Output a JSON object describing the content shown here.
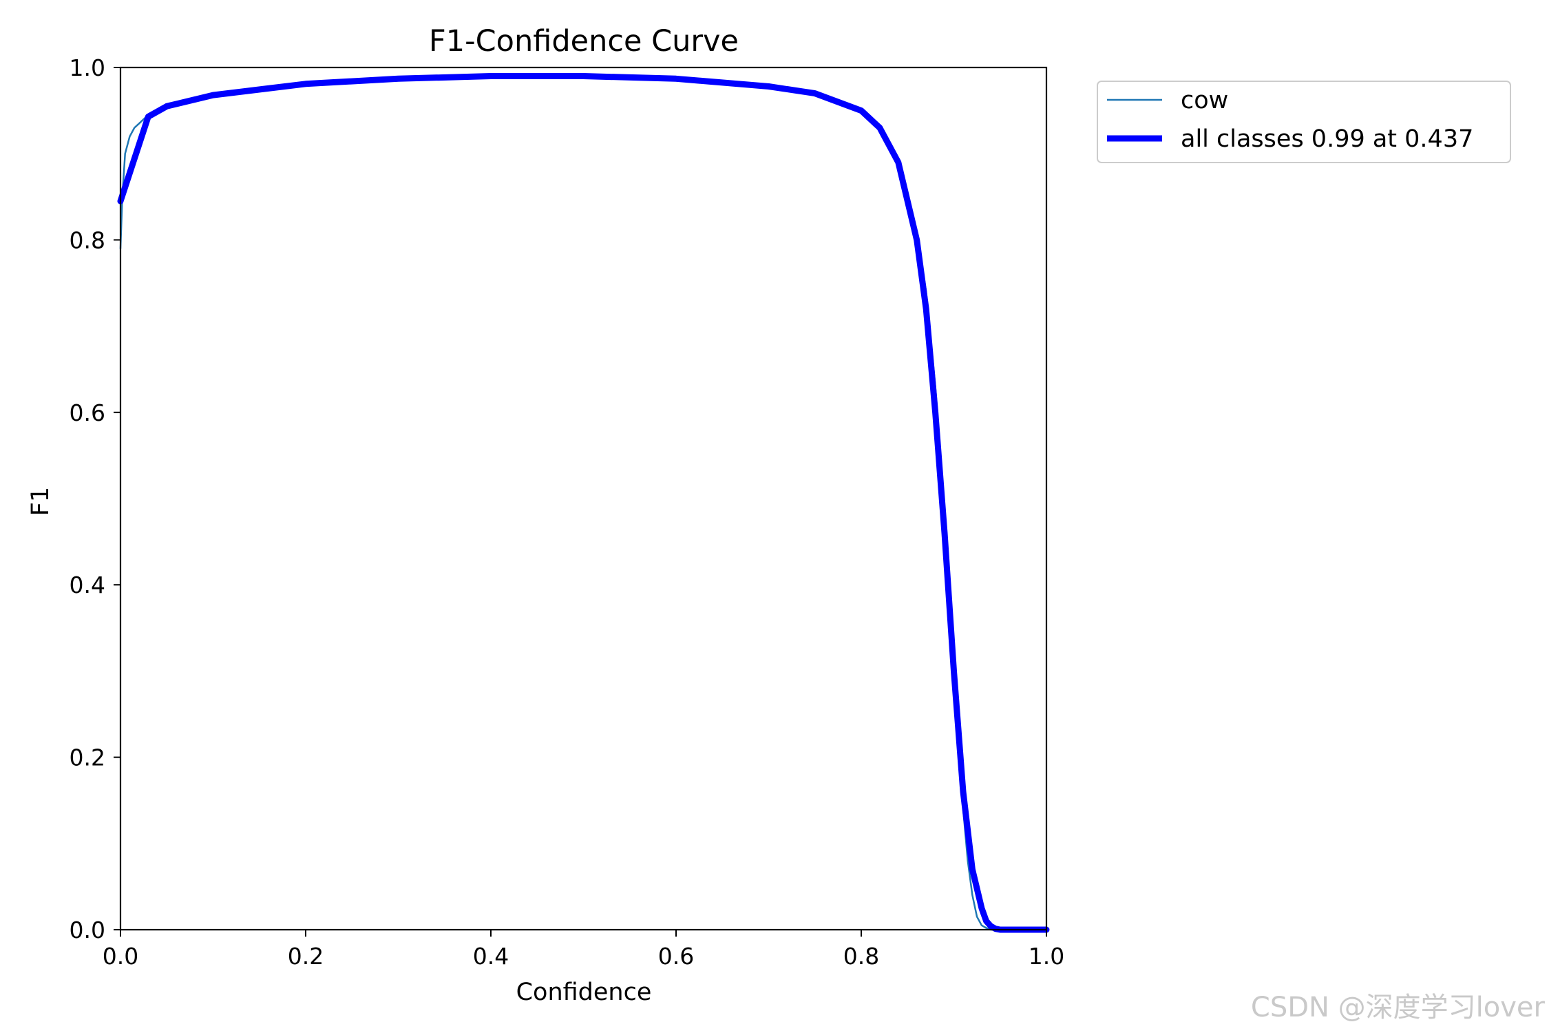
{
  "watermark": "CSDN @深度学习lover",
  "chart_data": {
    "type": "line",
    "title": "F1-Confidence Curve",
    "xlabel": "Confidence",
    "ylabel": "F1",
    "xlim": [
      0.0,
      1.0
    ],
    "ylim": [
      0.0,
      1.0
    ],
    "xticks": [
      "0.0",
      "0.2",
      "0.4",
      "0.6",
      "0.8",
      "1.0"
    ],
    "yticks": [
      "0.0",
      "0.2",
      "0.4",
      "0.6",
      "0.8",
      "1.0"
    ],
    "grid": false,
    "legend": "outside-top-right",
    "series": [
      {
        "name": "cow",
        "color": "#1f77b4",
        "x": [
          0.0,
          0.002,
          0.005,
          0.01,
          0.015,
          0.02,
          0.03,
          0.05,
          0.1,
          0.2,
          0.3,
          0.4,
          0.437,
          0.5,
          0.6,
          0.7,
          0.75,
          0.8,
          0.82,
          0.84,
          0.86,
          0.87,
          0.88,
          0.89,
          0.9,
          0.91,
          0.915,
          0.92,
          0.925,
          0.93,
          0.935,
          0.94,
          0.95,
          1.0
        ],
        "y": [
          0.79,
          0.85,
          0.9,
          0.92,
          0.93,
          0.935,
          0.945,
          0.955,
          0.968,
          0.981,
          0.987,
          0.99,
          0.99,
          0.99,
          0.987,
          0.978,
          0.97,
          0.95,
          0.93,
          0.89,
          0.81,
          0.74,
          0.63,
          0.49,
          0.3,
          0.14,
          0.08,
          0.04,
          0.015,
          0.005,
          0.002,
          0.0,
          0.0,
          0.0
        ]
      },
      {
        "name": "all classes 0.99 at 0.437",
        "color": "#0000ff",
        "x": [
          0.0,
          0.03,
          0.05,
          0.1,
          0.2,
          0.3,
          0.4,
          0.437,
          0.5,
          0.6,
          0.7,
          0.75,
          0.8,
          0.82,
          0.84,
          0.86,
          0.87,
          0.88,
          0.89,
          0.9,
          0.91,
          0.92,
          0.93,
          0.935,
          0.94,
          0.945,
          0.95,
          1.0
        ],
        "y": [
          0.845,
          0.943,
          0.955,
          0.968,
          0.981,
          0.987,
          0.99,
          0.99,
          0.99,
          0.987,
          0.978,
          0.97,
          0.95,
          0.93,
          0.89,
          0.8,
          0.72,
          0.6,
          0.46,
          0.3,
          0.16,
          0.07,
          0.025,
          0.01,
          0.004,
          0.001,
          0.0,
          0.0
        ]
      }
    ]
  }
}
